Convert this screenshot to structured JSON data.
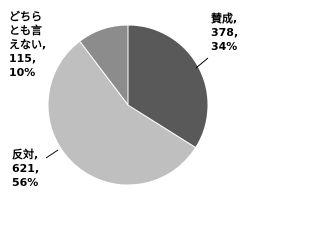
{
  "chart_data": {
    "type": "pie",
    "categories": [
      "賛成",
      "反対",
      "どちらとも言えない"
    ],
    "values": [
      378,
      621,
      115
    ],
    "percent_labels": [
      "34%",
      "56%",
      "10%"
    ],
    "label_separator": ",",
    "colors": [
      "#595959",
      "#bfbfbf",
      "#8c8c8c"
    ]
  }
}
